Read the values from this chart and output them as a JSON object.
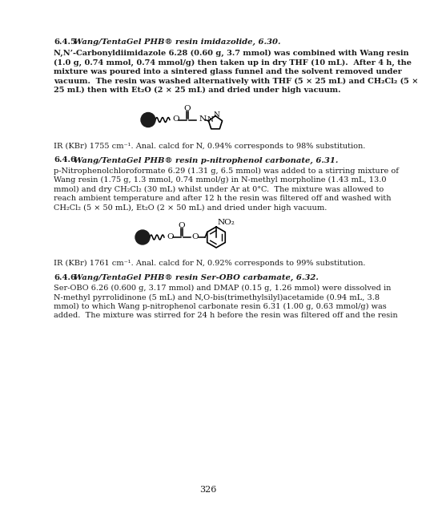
{
  "bg_color": "#ffffff",
  "text_color": "#1a1a1a",
  "page_number": "326",
  "s1_head_num": "6.4.5",
  "s1_head_rest": "Wang/TentaGel PHB® resin imidazolide, 6.30.",
  "s1_body": [
    "N,N’-Carbonyldiimidazole 6.28 (0.60 g, 3.7 mmol) was combined with Wang resin",
    "(1.0 g, 0.74 mmol, 0.74 mmol/g) then taken up in dry THF (10 mL).  After 4 h, the",
    "mixture was poured into a sintered glass funnel and the solvent removed under",
    "vacuum.  The resin was washed alternatively with THF (5 × 25 mL) and CH₂Cl₂ (5 ×",
    "25 mL) then with Et₂O (2 × 25 mL) and dried under high vacuum."
  ],
  "s1_ir": "IR (KBr) 1755 cm⁻¹. Anal. calcd for N, 0.94% corresponds to 98% substitution.",
  "s2_head_num": "6.4.6",
  "s2_head_rest": "Wang/TentaGel PHB® resin p-nitrophenol carbonate, 6.31.",
  "s2_body": [
    "p-Nitrophenolchloroformate 6.29 (1.31 g, 6.5 mmol) was added to a stirring mixture of",
    "Wang resin (1.75 g, 1.3 mmol, 0.74 mmol/g) in N-methyl morpholine (1.43 mL, 13.0",
    "mmol) and dry CH₂Cl₂ (30 mL) whilst under Ar at 0°C.  The mixture was allowed to",
    "reach ambient temperature and after 12 h the resin was filtered off and washed with",
    "CH₂Cl₂ (5 × 50 mL), Et₂O (2 × 50 mL) and dried under high vacuum."
  ],
  "s2_ir": "IR (KBr) 1761 cm⁻¹. Anal. calcd for N, 0.92% corresponds to 99% substitution.",
  "s3_head_num": "6.4.6",
  "s3_head_rest": "Wang/TentaGel PHB® resin Ser-OBO carbamate, 6.32.",
  "s3_body": [
    "Ser-OBO 6.26 (0.600 g, 3.17 mmol) and DMAP (0.15 g, 1.26 mmol) were dissolved in",
    "N-methyl pyrrolidinone (5 mL) and N,O-bis(trimethylsilyl)acetamide (0.94 mL, 3.8",
    "mmol) to which Wang p-nitrophenol carbonate resin 6.31 (1.00 g, 0.63 mmol/g) was",
    "added.  The mixture was stirred for 24 h before the resin was filtered off and the resin"
  ]
}
